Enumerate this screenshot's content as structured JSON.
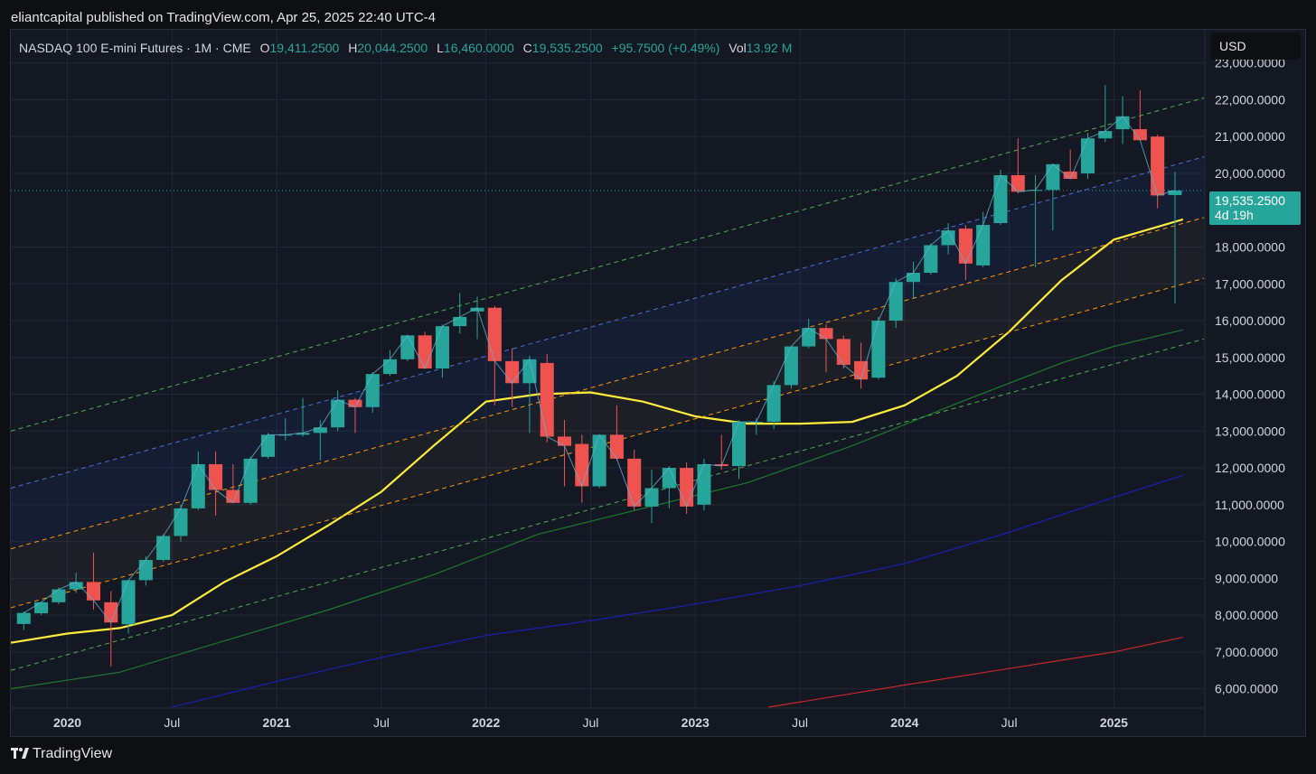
{
  "header": {
    "published_by": "eliantcapital published on TradingView.com, Apr 25, 2025 22:40 UTC-4"
  },
  "legend": {
    "symbol": "NASDAQ 100 E-mini Futures · 1M · CME",
    "o_label": "O",
    "o_value": "19,411.2500",
    "h_label": "H",
    "h_value": "20,044.2500",
    "l_label": "L",
    "l_value": "16,460.0000",
    "c_label": "C",
    "c_value": "19,535.2500",
    "change": "+95.7500 (+0.49%)",
    "vol_label": "Vol",
    "vol_value": "13.92 M"
  },
  "currency": "USD",
  "price_tag": {
    "price": "19,535.2500",
    "countdown": "4d 19h"
  },
  "footer": {
    "brand": "TradingView"
  },
  "colors": {
    "up": "#26a69a",
    "down": "#ef5350",
    "ma_yellow": "#ffeb3b",
    "ma_green": "#1b7a2e",
    "ma_blue": "#1a1fa8",
    "ma_red": "#c62828",
    "channel_green": "#4caf50",
    "channel_blue": "#4a6fd8",
    "channel_orange": "#ff9800"
  },
  "chart_data": {
    "type": "candlestick",
    "y_axis": {
      "ticks": [
        "23,000.0000",
        "22,000.0000",
        "21,000.0000",
        "20,000.0000",
        "18,000.0000",
        "17,000.0000",
        "16,000.0000",
        "15,000.0000",
        "14,000.0000",
        "13,000.0000",
        "12,000.0000",
        "11,000.0000",
        "10,000.0000",
        "9,000.0000",
        "8,000.0000",
        "7,000.0000",
        "6,000.0000"
      ],
      "tick_values": [
        23000,
        22000,
        21000,
        20000,
        18000,
        17000,
        16000,
        15000,
        14000,
        13000,
        12000,
        11000,
        10000,
        9000,
        8000,
        7000,
        6000
      ],
      "ylim": [
        5500,
        23900
      ]
    },
    "x_axis": {
      "labels": [
        {
          "text": "2020",
          "t": 2020.0,
          "bold": true
        },
        {
          "text": "Jul",
          "t": 2020.5,
          "bold": false
        },
        {
          "text": "2021",
          "t": 2021.0,
          "bold": true
        },
        {
          "text": "Jul",
          "t": 2021.5,
          "bold": false
        },
        {
          "text": "2022",
          "t": 2022.0,
          "bold": true
        },
        {
          "text": "Jul",
          "t": 2022.5,
          "bold": false
        },
        {
          "text": "2023",
          "t": 2023.0,
          "bold": true
        },
        {
          "text": "Jul",
          "t": 2023.5,
          "bold": false
        },
        {
          "text": "2024",
          "t": 2024.0,
          "bold": true
        },
        {
          "text": "Jul",
          "t": 2024.5,
          "bold": false
        },
        {
          "text": "2025",
          "t": 2025.0,
          "bold": true
        }
      ],
      "xlim": [
        2019.73,
        2025.43
      ]
    },
    "current_price": 19535.25,
    "candles": [
      {
        "t": "2019-10",
        "o": 7760,
        "h": 8100,
        "l": 7600,
        "c": 8060
      },
      {
        "t": "2019-11",
        "o": 8050,
        "h": 8350,
        "l": 8000,
        "c": 8350
      },
      {
        "t": "2019-12",
        "o": 8350,
        "h": 8750,
        "l": 8300,
        "c": 8700
      },
      {
        "t": "2020-01",
        "o": 8700,
        "h": 9150,
        "l": 8600,
        "c": 8900
      },
      {
        "t": "2020-02",
        "o": 8900,
        "h": 9700,
        "l": 8150,
        "c": 8400
      },
      {
        "t": "2020-03",
        "o": 8350,
        "h": 8650,
        "l": 6600,
        "c": 7800
      },
      {
        "t": "2020-04",
        "o": 7750,
        "h": 8950,
        "l": 7500,
        "c": 8950
      },
      {
        "t": "2020-05",
        "o": 8950,
        "h": 9600,
        "l": 8800,
        "c": 9500
      },
      {
        "t": "2020-06",
        "o": 9500,
        "h": 10200,
        "l": 9450,
        "c": 10150
      },
      {
        "t": "2020-07",
        "o": 10150,
        "h": 11000,
        "l": 10000,
        "c": 10900
      },
      {
        "t": "2020-08",
        "o": 10900,
        "h": 12450,
        "l": 10850,
        "c": 12100
      },
      {
        "t": "2020-09",
        "o": 12100,
        "h": 12450,
        "l": 10700,
        "c": 11400
      },
      {
        "t": "2020-10",
        "o": 11400,
        "h": 12100,
        "l": 11050,
        "c": 11050
      },
      {
        "t": "2020-11",
        "o": 11050,
        "h": 12300,
        "l": 11000,
        "c": 12250
      },
      {
        "t": "2020-12",
        "o": 12300,
        "h": 12950,
        "l": 12250,
        "c": 12900
      },
      {
        "t": "2021-01",
        "o": 12900,
        "h": 13350,
        "l": 12750,
        "c": 12900
      },
      {
        "t": "2021-02",
        "o": 12900,
        "h": 13900,
        "l": 12850,
        "c": 12950
      },
      {
        "t": "2021-03",
        "o": 12950,
        "h": 13300,
        "l": 12200,
        "c": 13100
      },
      {
        "t": "2021-04",
        "o": 13100,
        "h": 14100,
        "l": 13000,
        "c": 13850
      },
      {
        "t": "2021-05",
        "o": 13850,
        "h": 13900,
        "l": 12950,
        "c": 13650
      },
      {
        "t": "2021-06",
        "o": 13650,
        "h": 14600,
        "l": 13500,
        "c": 14550
      },
      {
        "t": "2021-07",
        "o": 14550,
        "h": 15200,
        "l": 14500,
        "c": 14950
      },
      {
        "t": "2021-08",
        "o": 14950,
        "h": 15600,
        "l": 14900,
        "c": 15600
      },
      {
        "t": "2021-09",
        "o": 15600,
        "h": 15700,
        "l": 14700,
        "c": 14700
      },
      {
        "t": "2021-10",
        "o": 14700,
        "h": 15900,
        "l": 14450,
        "c": 15850
      },
      {
        "t": "2021-11",
        "o": 15850,
        "h": 16750,
        "l": 15650,
        "c": 16100
      },
      {
        "t": "2021-12",
        "o": 16250,
        "h": 16650,
        "l": 15500,
        "c": 16350
      },
      {
        "t": "2022-01",
        "o": 16350,
        "h": 16400,
        "l": 13700,
        "c": 14900
      },
      {
        "t": "2022-02",
        "o": 14900,
        "h": 15250,
        "l": 13650,
        "c": 14300
      },
      {
        "t": "2022-03",
        "o": 14300,
        "h": 15050,
        "l": 12950,
        "c": 14950
      },
      {
        "t": "2022-04",
        "o": 14850,
        "h": 15100,
        "l": 12700,
        "c": 12850
      },
      {
        "t": "2022-05",
        "o": 12850,
        "h": 13300,
        "l": 11500,
        "c": 12600
      },
      {
        "t": "2022-06",
        "o": 12650,
        "h": 12900,
        "l": 11050,
        "c": 11500
      },
      {
        "t": "2022-07",
        "o": 11500,
        "h": 12900,
        "l": 11450,
        "c": 12900
      },
      {
        "t": "2022-08",
        "o": 12900,
        "h": 13700,
        "l": 12200,
        "c": 12250
      },
      {
        "t": "2022-09",
        "o": 12250,
        "h": 12500,
        "l": 10850,
        "c": 10950
      },
      {
        "t": "2022-10",
        "o": 10950,
        "h": 11950,
        "l": 10500,
        "c": 11450
      },
      {
        "t": "2022-11",
        "o": 11450,
        "h": 12050,
        "l": 10900,
        "c": 12000
      },
      {
        "t": "2022-12",
        "o": 12000,
        "h": 12150,
        "l": 10750,
        "c": 10950
      },
      {
        "t": "2023-01",
        "o": 11000,
        "h": 12250,
        "l": 10850,
        "c": 12100
      },
      {
        "t": "2023-02",
        "o": 12100,
        "h": 12900,
        "l": 11950,
        "c": 12050
      },
      {
        "t": "2023-03",
        "o": 12050,
        "h": 13300,
        "l": 11700,
        "c": 13250
      },
      {
        "t": "2023-04",
        "o": 13250,
        "h": 13350,
        "l": 12900,
        "c": 13250
      },
      {
        "t": "2023-05",
        "o": 13250,
        "h": 14350,
        "l": 13050,
        "c": 14250
      },
      {
        "t": "2023-06",
        "o": 14250,
        "h": 15300,
        "l": 14150,
        "c": 15300
      },
      {
        "t": "2023-07",
        "o": 15300,
        "h": 16050,
        "l": 15250,
        "c": 15800
      },
      {
        "t": "2023-08",
        "o": 15800,
        "h": 15900,
        "l": 14600,
        "c": 15500
      },
      {
        "t": "2023-09",
        "o": 15500,
        "h": 15600,
        "l": 14700,
        "c": 14800
      },
      {
        "t": "2023-10",
        "o": 14900,
        "h": 15400,
        "l": 14150,
        "c": 14400
      },
      {
        "t": "2023-11",
        "o": 14450,
        "h": 16100,
        "l": 14400,
        "c": 16000
      },
      {
        "t": "2023-12",
        "o": 16000,
        "h": 17150,
        "l": 15800,
        "c": 17050
      },
      {
        "t": "2024-01",
        "o": 17050,
        "h": 17600,
        "l": 16600,
        "c": 17300
      },
      {
        "t": "2024-02",
        "o": 17300,
        "h": 18100,
        "l": 17250,
        "c": 18050
      },
      {
        "t": "2024-03",
        "o": 18050,
        "h": 18650,
        "l": 17800,
        "c": 18450
      },
      {
        "t": "2024-04",
        "o": 18500,
        "h": 18600,
        "l": 17100,
        "c": 17550
      },
      {
        "t": "2024-05",
        "o": 17500,
        "h": 18950,
        "l": 17450,
        "c": 18600
      },
      {
        "t": "2024-06",
        "o": 18650,
        "h": 20100,
        "l": 18600,
        "c": 19950
      },
      {
        "t": "2024-07",
        "o": 19950,
        "h": 20950,
        "l": 19450,
        "c": 19500
      },
      {
        "t": "2024-08",
        "o": 19550,
        "h": 19950,
        "l": 17450,
        "c": 19550
      },
      {
        "t": "2024-09",
        "o": 19550,
        "h": 20250,
        "l": 18450,
        "c": 20250
      },
      {
        "t": "2024-10",
        "o": 20050,
        "h": 20650,
        "l": 19850,
        "c": 19850
      },
      {
        "t": "2024-11",
        "o": 20000,
        "h": 21100,
        "l": 19850,
        "c": 20950
      },
      {
        "t": "2024-12",
        "o": 20950,
        "h": 22400,
        "l": 20850,
        "c": 21150
      },
      {
        "t": "2025-01",
        "o": 21200,
        "h": 22100,
        "l": 20800,
        "c": 21550
      },
      {
        "t": "2025-02",
        "o": 21200,
        "h": 22250,
        "l": 20950,
        "c": 20900
      },
      {
        "t": "2025-03",
        "o": 21000,
        "h": 21050,
        "l": 19050,
        "c": 19400
      },
      {
        "t": "2025-04",
        "o": 19411.25,
        "h": 20044.25,
        "l": 16460,
        "c": 19535.25
      }
    ],
    "ma_yellow": [
      [
        2019.73,
        7250
      ],
      [
        2020.0,
        7500
      ],
      [
        2020.25,
        7650
      ],
      [
        2020.5,
        8000
      ],
      [
        2020.75,
        8900
      ],
      [
        2021.0,
        9600
      ],
      [
        2021.25,
        10450
      ],
      [
        2021.5,
        11350
      ],
      [
        2021.75,
        12600
      ],
      [
        2022.0,
        13800
      ],
      [
        2022.25,
        14000
      ],
      [
        2022.5,
        14050
      ],
      [
        2022.75,
        13800
      ],
      [
        2023.0,
        13400
      ],
      [
        2023.25,
        13200
      ],
      [
        2023.5,
        13200
      ],
      [
        2023.75,
        13250
      ],
      [
        2024.0,
        13700
      ],
      [
        2024.25,
        14500
      ],
      [
        2024.5,
        15700
      ],
      [
        2024.75,
        17100
      ],
      [
        2025.0,
        18200
      ],
      [
        2025.33,
        18750
      ]
    ],
    "ma_green": [
      [
        2019.73,
        6000
      ],
      [
        2020.25,
        6450
      ],
      [
        2020.75,
        7300
      ],
      [
        2021.25,
        8150
      ],
      [
        2021.75,
        9100
      ],
      [
        2022.25,
        10200
      ],
      [
        2022.75,
        10900
      ],
      [
        2023.25,
        11600
      ],
      [
        2023.75,
        12600
      ],
      [
        2024.25,
        13750
      ],
      [
        2024.75,
        14850
      ],
      [
        2025.0,
        15300
      ],
      [
        2025.33,
        15750
      ]
    ],
    "ma_blue": [
      [
        2020.5,
        5500
      ],
      [
        2021.0,
        6200
      ],
      [
        2021.5,
        6850
      ],
      [
        2022.0,
        7450
      ],
      [
        2022.5,
        7850
      ],
      [
        2023.0,
        8300
      ],
      [
        2023.5,
        8800
      ],
      [
        2024.0,
        9400
      ],
      [
        2024.5,
        10250
      ],
      [
        2025.0,
        11200
      ],
      [
        2025.33,
        11800
      ]
    ],
    "ma_red": [
      [
        2023.35,
        5500
      ],
      [
        2024.0,
        6100
      ],
      [
        2024.5,
        6550
      ],
      [
        2025.0,
        7000
      ],
      [
        2025.33,
        7400
      ]
    ],
    "channel_lines": [
      {
        "color": "#4caf50",
        "p0": [
          2019.73,
          13000
        ],
        "p1": [
          2025.43,
          22050
        ]
      },
      {
        "color": "#4a6fd8",
        "p0": [
          2019.73,
          11450
        ],
        "p1": [
          2025.43,
          20450
        ]
      },
      {
        "color": "#ff9800",
        "p0": [
          2019.73,
          9800
        ],
        "p1": [
          2025.43,
          18800
        ]
      },
      {
        "color": "#ff9800",
        "p0": [
          2019.73,
          8200
        ],
        "p1": [
          2025.43,
          17150
        ]
      },
      {
        "color": "#4caf50",
        "p0": [
          2019.73,
          6500
        ],
        "p1": [
          2025.43,
          15500
        ]
      }
    ]
  }
}
